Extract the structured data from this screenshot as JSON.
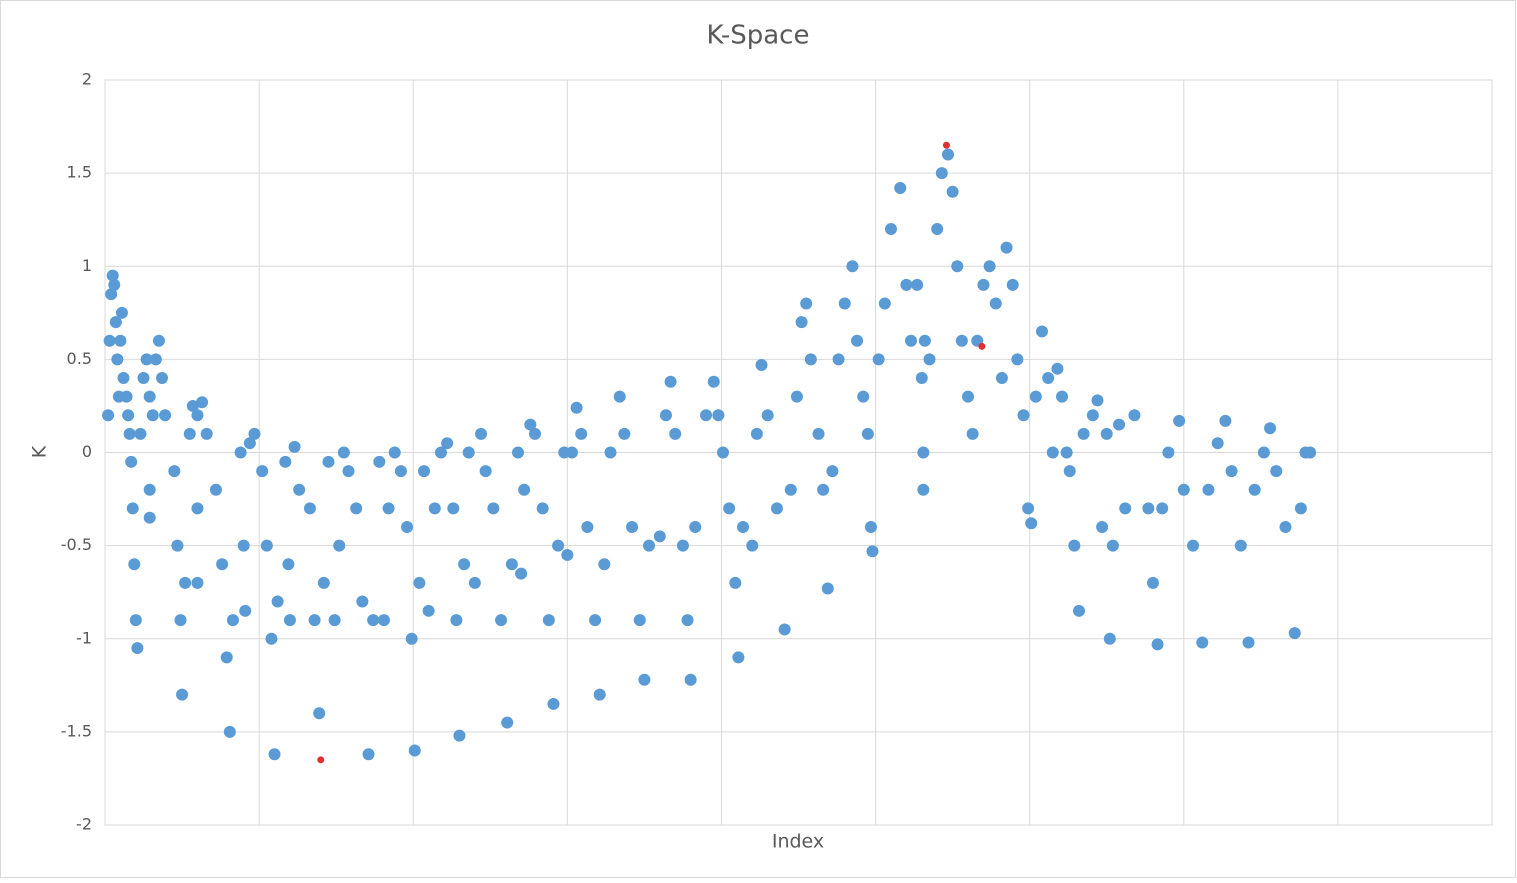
{
  "chart_data": {
    "type": "scatter",
    "title": "K-Space",
    "x_label": "Index",
    "y_label": "K",
    "xlim": [
      0,
      900
    ],
    "ylim": [
      -2,
      2
    ],
    "yticks": [
      -2,
      -1.5,
      -1,
      -0.5,
      0,
      0.5,
      1,
      1.5,
      2
    ],
    "grid": true,
    "series": [
      {
        "color": "#5b9bd5",
        "x": [
          2,
          3,
          4,
          5,
          6,
          7,
          8,
          9,
          10,
          11,
          12,
          14,
          15,
          16,
          17,
          18,
          19,
          20,
          21,
          23,
          25,
          27,
          29,
          29,
          29,
          31,
          33,
          35,
          37,
          39,
          45,
          47,
          49,
          50,
          52,
          55,
          57,
          60,
          60,
          60,
          63,
          66,
          72,
          76,
          79,
          81,
          83,
          88,
          90,
          91,
          94,
          97,
          102,
          105,
          108,
          110,
          112,
          117,
          119,
          120,
          123,
          126,
          133,
          136,
          139,
          142,
          145,
          149,
          152,
          155,
          158,
          163,
          167,
          171,
          174,
          178,
          181,
          184,
          188,
          192,
          196,
          199,
          201,
          204,
          207,
          210,
          214,
          218,
          222,
          226,
          228,
          230,
          233,
          236,
          240,
          244,
          247,
          252,
          257,
          261,
          264,
          268,
          270,
          272,
          276,
          279,
          284,
          288,
          291,
          294,
          298,
          300,
          303,
          306,
          309,
          313,
          318,
          321,
          324,
          328,
          334,
          337,
          342,
          347,
          350,
          353,
          360,
          364,
          367,
          370,
          375,
          378,
          380,
          383,
          390,
          395,
          398,
          401,
          405,
          409,
          411,
          414,
          420,
          423,
          426,
          430,
          436,
          441,
          445,
          449,
          452,
          455,
          458,
          463,
          466,
          469,
          472,
          476,
          480,
          485,
          488,
          492,
          495,
          497,
          498,
          502,
          506,
          510,
          516,
          520,
          523,
          527,
          530,
          531,
          531,
          532,
          535,
          540,
          543,
          547,
          550,
          553,
          556,
          560,
          563,
          566,
          570,
          574,
          578,
          582,
          585,
          589,
          592,
          596,
          599,
          601,
          604,
          608,
          612,
          615,
          618,
          621,
          624,
          626,
          629,
          632,
          635,
          641,
          644,
          647,
          650,
          652,
          654,
          658,
          662,
          668,
          677,
          680,
          683,
          686,
          690,
          697,
          700,
          706,
          712,
          716,
          722,
          727,
          731,
          737,
          742,
          746,
          752,
          756,
          760,
          766,
          772,
          776,
          779,
          782
        ],
        "values": [
          0.2,
          0.6,
          0.85,
          0.95,
          0.9,
          0.7,
          0.5,
          0.3,
          0.6,
          0.75,
          0.4,
          0.3,
          0.2,
          0.1,
          -0.05,
          -0.3,
          -0.6,
          -0.9,
          -1.05,
          0.1,
          0.4,
          0.5,
          0.3,
          -0.35,
          -0.2,
          0.2,
          0.5,
          0.6,
          0.4,
          0.2,
          -0.1,
          -0.5,
          -0.9,
          -1.3,
          -0.7,
          0.1,
          0.25,
          0.2,
          -0.7,
          -0.3,
          0.27,
          0.1,
          -0.2,
          -0.6,
          -1.1,
          -1.5,
          -0.9,
          0,
          -0.5,
          -0.85,
          0.05,
          0.1,
          -0.1,
          -0.5,
          -1,
          -1.62,
          -0.8,
          -0.05,
          -0.6,
          -0.9,
          0.03,
          -0.2,
          -0.3,
          -0.9,
          -1.4,
          -0.7,
          -0.05,
          -0.9,
          -0.5,
          0,
          -0.1,
          -0.3,
          -0.8,
          -1.62,
          -0.9,
          -0.05,
          -0.9,
          -0.3,
          0,
          -0.1,
          -0.4,
          -1,
          -1.6,
          -0.7,
          -0.1,
          -0.85,
          -0.3,
          0,
          0.05,
          -0.3,
          -0.9,
          -1.52,
          -0.6,
          0,
          -0.7,
          0.1,
          -0.1,
          -0.3,
          -0.9,
          -1.45,
          -0.6,
          0,
          -0.65,
          -0.2,
          0.15,
          0.1,
          -0.3,
          -0.9,
          -1.35,
          -0.5,
          0,
          -0.55,
          0,
          0.24,
          0.1,
          -0.4,
          -0.9,
          -1.3,
          -0.6,
          0,
          0.3,
          0.1,
          -0.4,
          -0.9,
          -1.22,
          -0.5,
          -0.45,
          0.2,
          0.38,
          0.1,
          -0.5,
          -0.9,
          -1.22,
          -0.4,
          0.2,
          0.38,
          0.2,
          0,
          -0.3,
          -0.7,
          -1.1,
          -0.4,
          -0.5,
          0.1,
          0.47,
          0.2,
          -0.3,
          -0.95,
          -0.2,
          0.3,
          0.7,
          0.8,
          0.5,
          0.1,
          -0.2,
          -0.73,
          -0.1,
          0.5,
          0.8,
          1,
          0.6,
          0.3,
          0.1,
          -0.4,
          -0.53,
          0.5,
          0.8,
          1.2,
          1.42,
          0.9,
          0.6,
          0.9,
          0.4,
          -0.2,
          0,
          0.6,
          0.5,
          1.2,
          1.5,
          1.6,
          1.4,
          1,
          0.6,
          0.3,
          0.1,
          0.6,
          0.9,
          1,
          0.8,
          0.4,
          1.1,
          0.9,
          0.5,
          0.2,
          -0.3,
          -0.38,
          0.3,
          0.65,
          0.4,
          0,
          0.45,
          0.3,
          0,
          -0.1,
          -0.5,
          -0.85,
          0.1,
          0.2,
          0.28,
          -0.4,
          0.1,
          -1,
          -0.5,
          0.15,
          -0.3,
          0.2,
          -0.3,
          -0.7,
          -1.03,
          -0.3,
          0,
          0.17,
          -0.2,
          -0.5,
          -1.02,
          -0.2,
          0.05,
          0.17,
          -0.1,
          -0.5,
          -1.02,
          -0.2,
          0,
          0.13,
          -0.1,
          -0.4,
          -0.97,
          -0.3,
          0,
          0
        ]
      },
      {
        "color": "#e03030",
        "x": [
          546,
          569,
          140
        ],
        "values": [
          1.65,
          0.57,
          -1.65
        ]
      }
    ]
  }
}
